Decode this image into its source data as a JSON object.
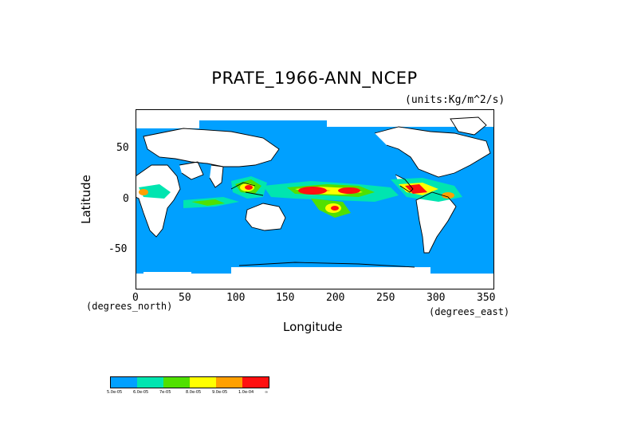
{
  "title": "PRATE_1966-ANN_NCEP",
  "units": "(units:Kg/m^2/s)",
  "x_axis": {
    "label": "Longitude",
    "unit_note": "(degrees_east)",
    "ticks": [
      "0",
      "50",
      "100",
      "150",
      "200",
      "250",
      "300",
      "350"
    ]
  },
  "y_axis": {
    "label": "Latitude",
    "unit_note": "(degrees_north)",
    "ticks": [
      "50",
      "0",
      "-50"
    ]
  },
  "legend": {
    "colors": [
      "#00a0ff",
      "#00e5b0",
      "#50e000",
      "#ffff00",
      "#ffa000",
      "#ff1010"
    ],
    "labels": [
      "5.0e-05",
      "6.0e-05",
      "7e-05",
      "8.0e-05",
      "9.0e-05",
      "1.0e-04"
    ],
    "end_label": "∞"
  },
  "colors": {
    "ocean_base": "#00a0ff",
    "no_data": "#ffffff",
    "coast": "#000000"
  }
}
